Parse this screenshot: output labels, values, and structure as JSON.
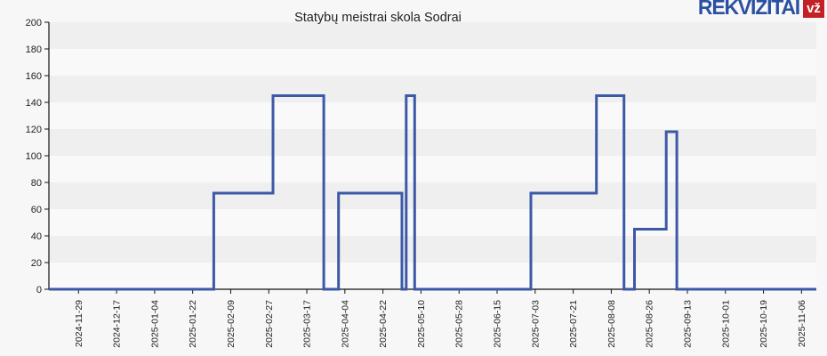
{
  "page": {
    "background": "#f7f7f7"
  },
  "logo": {
    "text": "REKVIZITAI",
    "badge": "vž",
    "text_color": "#2b4fa2",
    "badge_bg": "#c32026",
    "badge_text_color": "#ffffff"
  },
  "chart_data": {
    "type": "line",
    "line_style": "step-after",
    "title": "Statybų meistrai skola Sodrai",
    "xlabel": "",
    "ylabel": "",
    "ylim": [
      0,
      200
    ],
    "y_ticks": [
      0,
      20,
      40,
      60,
      80,
      100,
      120,
      140,
      160,
      180,
      200
    ],
    "x_domain": [
      "2024-11-15",
      "2025-11-13"
    ],
    "x_tick_labels": [
      "2024-11-29",
      "2024-12-17",
      "2025-01-04",
      "2025-01-22",
      "2025-02-09",
      "2025-02-27",
      "2025-03-17",
      "2025-04-04",
      "2025-04-22",
      "2025-05-10",
      "2025-05-28",
      "2025-06-15",
      "2025-07-03",
      "2025-07-21",
      "2025-08-08",
      "2025-08-26",
      "2025-09-13",
      "2025-10-01",
      "2025-10-19",
      "2025-11-06"
    ],
    "x_tick_interval_days": 18,
    "initial_value": 0,
    "final_value": 0,
    "transitions": [
      {
        "date": "2025-02-01",
        "value": 72
      },
      {
        "date": "2025-03-01",
        "value": 145
      },
      {
        "date": "2025-03-25",
        "value": 0
      },
      {
        "date": "2025-04-01",
        "value": 72
      },
      {
        "date": "2025-05-01",
        "value": 0
      },
      {
        "date": "2025-05-03",
        "value": 145
      },
      {
        "date": "2025-05-07",
        "value": 0
      },
      {
        "date": "2025-07-01",
        "value": 72
      },
      {
        "date": "2025-08-01",
        "value": 145
      },
      {
        "date": "2025-08-14",
        "value": 0
      },
      {
        "date": "2025-08-19",
        "value": 45
      },
      {
        "date": "2025-09-03",
        "value": 118
      },
      {
        "date": "2025-09-08",
        "value": 0
      }
    ],
    "grid": "horizontal-alternating-bands",
    "legend": "none",
    "colors": {
      "line": "#3c59a8",
      "band_dark": "#efefef",
      "band_light": "#f9f9f9",
      "axis": "#111111",
      "tick_text": "#222222",
      "title_text": "#333333"
    }
  }
}
